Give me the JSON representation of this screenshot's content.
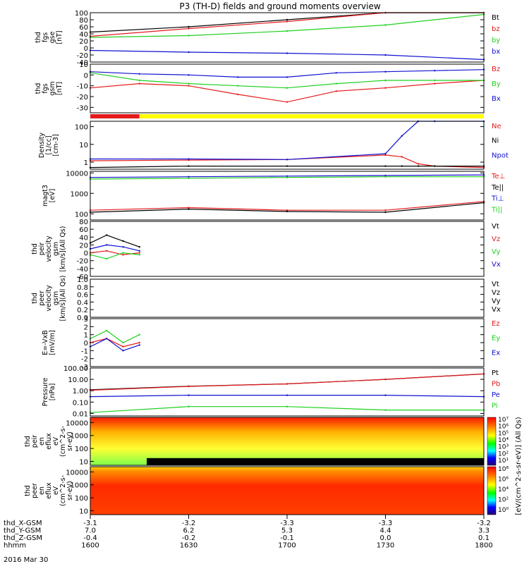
{
  "title": "P3 (TH-D) fields and ground moments overview",
  "date_label": "2016 Mar 30",
  "colors": {
    "black": "#000000",
    "red": "#e41a1c",
    "green": "#1fd01f",
    "blue": "#1010d0",
    "yellow": "#ffff00"
  },
  "chart_data": [
    {
      "id": "fgs-gse",
      "type": "line",
      "ylabel": [
        "thd",
        "fgs",
        "gse",
        "[nT]"
      ],
      "ylim": [
        -40,
        100
      ],
      "yticks": [
        100,
        80,
        60,
        40,
        20,
        0,
        -20,
        -40
      ],
      "x": [
        1600,
        1630,
        1700,
        1730,
        1800
      ],
      "series": [
        {
          "name": "Bt",
          "color": "black",
          "values": [
            45,
            60,
            80,
            110,
            130
          ]
        },
        {
          "name": "bz",
          "color": "red",
          "values": [
            33,
            55,
            75,
            110,
            130
          ]
        },
        {
          "name": "by",
          "color": "green",
          "values": [
            30,
            35,
            48,
            65,
            95
          ]
        },
        {
          "name": "bx",
          "color": "blue",
          "values": [
            -7,
            -12,
            -15,
            -20,
            -33
          ]
        }
      ]
    },
    {
      "id": "fgs-gsm",
      "type": "line",
      "ylabel": [
        "thd",
        "fgs",
        "gsm",
        "[nT]"
      ],
      "ylim": [
        -35,
        10
      ],
      "yticks": [
        10,
        0,
        -10,
        -20,
        -30
      ],
      "x": [
        1600,
        1615,
        1630,
        1645,
        1700,
        1715,
        1730,
        1745,
        1800
      ],
      "series": [
        {
          "name": "Bz",
          "color": "red",
          "values": [
            -12,
            -8,
            -10,
            -18,
            -25,
            -15,
            -12,
            -8,
            -5
          ]
        },
        {
          "name": "By",
          "color": "green",
          "values": [
            2,
            -5,
            -8,
            -10,
            -12,
            -8,
            -5,
            -5,
            -5
          ]
        },
        {
          "name": "Bx",
          "color": "blue",
          "values": [
            3,
            1,
            0,
            -2,
            -2,
            2,
            3,
            4,
            5
          ]
        }
      ]
    },
    {
      "id": "mode-bar",
      "type": "bar",
      "segments": [
        {
          "color": "red",
          "from": 1600,
          "to": 1615
        },
        {
          "color": "yellow",
          "from": 1615,
          "to": 1800
        }
      ]
    },
    {
      "id": "density",
      "type": "line",
      "ylabel": [
        "Density",
        "[1/cc]",
        "[cm-3]"
      ],
      "scale": "log",
      "ylim": [
        0.4,
        200
      ],
      "yticks": [
        100,
        10,
        1
      ],
      "ytick_labels": [
        "100",
        "10",
        "1"
      ],
      "x": [
        1600,
        1630,
        1700,
        1730,
        1735,
        1740,
        1745,
        1800
      ],
      "series": [
        {
          "name": "Ne",
          "color": "red",
          "values": [
            1.2,
            1.3,
            1.4,
            2.5,
            2,
            0.8,
            0.6,
            0.5
          ]
        },
        {
          "name": "Ni",
          "color": "black",
          "values": [
            0.5,
            0.6,
            0.6,
            0.6,
            0.6,
            0.6,
            0.6,
            0.6
          ]
        },
        {
          "name": "Npot",
          "color": "blue",
          "values": [
            1.5,
            1.5,
            1.4,
            3,
            30,
            200,
            200,
            200
          ]
        }
      ]
    },
    {
      "id": "temperature",
      "type": "line",
      "ylabel": [
        "magt3",
        "[eV]"
      ],
      "scale": "log",
      "ylim": [
        50,
        12000
      ],
      "yticks": [
        10000,
        1000,
        100
      ],
      "ytick_labels": [
        "10000",
        "1000",
        "100"
      ],
      "legend": [
        "Te⊥",
        "Te||",
        "Ti⊥",
        "Ti||"
      ],
      "x": [
        1600,
        1630,
        1700,
        1730,
        1800
      ],
      "series": [
        {
          "name": "Te⊥",
          "color": "red",
          "values": [
            150,
            200,
            150,
            150,
            400
          ]
        },
        {
          "name": "Te||",
          "color": "black",
          "values": [
            120,
            170,
            130,
            120,
            350
          ]
        },
        {
          "name": "Ti⊥",
          "color": "blue",
          "values": [
            6000,
            6500,
            7000,
            7500,
            8000
          ]
        },
        {
          "name": "Ti||",
          "color": "green",
          "values": [
            5000,
            5500,
            6000,
            6500,
            6500
          ]
        }
      ]
    },
    {
      "id": "peir-velocity",
      "type": "line",
      "ylabel": [
        "thd",
        "peir",
        "velocity",
        "gsm",
        "[km/s](All Qs)"
      ],
      "ylim": [
        -60,
        80
      ],
      "yticks": [
        80,
        60,
        40,
        20,
        0,
        -20,
        -40,
        -60
      ],
      "x": [
        1600,
        1605,
        1610,
        1615
      ],
      "series": [
        {
          "name": "Vt",
          "color": "black",
          "values": [
            25,
            45,
            30,
            15
          ]
        },
        {
          "name": "Vz",
          "color": "red",
          "values": [
            0,
            5,
            -5,
            0
          ]
        },
        {
          "name": "Vy",
          "color": "green",
          "values": [
            -5,
            -15,
            0,
            -5
          ]
        },
        {
          "name": "Vx",
          "color": "blue",
          "values": [
            10,
            20,
            15,
            5
          ]
        }
      ]
    },
    {
      "id": "peer-velocity",
      "type": "line",
      "ylabel": [
        "thd",
        "peer",
        "velocity",
        "gsm",
        "[km/s](All Qs)"
      ],
      "ylim": [
        0,
        1
      ],
      "yticks": [
        1.0,
        0.8,
        0.6,
        0.4,
        0.2,
        0.0
      ],
      "ytick_labels": [
        "1.0",
        "0.8",
        "0.6",
        "0.4",
        "0.2",
        "0.0"
      ],
      "legend": [
        "Vt",
        "Vz",
        "Vy",
        "Vx"
      ],
      "series": []
    },
    {
      "id": "efield",
      "type": "line",
      "ylabel": [
        "E=-VxB",
        "[mV/m]"
      ],
      "ylim": [
        -3,
        3
      ],
      "yticks": [
        3,
        2,
        1,
        0,
        -1,
        -2,
        -3
      ],
      "x": [
        1600,
        1605,
        1610,
        1615
      ],
      "series": [
        {
          "name": "Ez",
          "color": "red",
          "values": [
            0,
            0.5,
            -0.5,
            0
          ]
        },
        {
          "name": "Ey",
          "color": "green",
          "values": [
            0.5,
            1.5,
            0,
            1
          ]
        },
        {
          "name": "Ex",
          "color": "blue",
          "values": [
            -0.5,
            0.5,
            -1,
            -0.3
          ]
        }
      ]
    },
    {
      "id": "pressure",
      "type": "line",
      "ylabel": [
        "Pressure",
        "[nPa]"
      ],
      "scale": "log",
      "ylim": [
        0.006,
        100
      ],
      "yticks": [
        100,
        10,
        1,
        0.1,
        0.01
      ],
      "ytick_labels": [
        "100.00",
        "10.00",
        "1.00",
        "0.10",
        "0.01"
      ],
      "x": [
        1600,
        1630,
        1700,
        1730,
        1800
      ],
      "series": [
        {
          "name": "Pt",
          "color": "black",
          "values": [
            1.2,
            2.5,
            4,
            10,
            30
          ]
        },
        {
          "name": "Pb",
          "color": "red",
          "values": [
            1.1,
            2.4,
            4,
            10,
            30
          ]
        },
        {
          "name": "Pe",
          "color": "blue",
          "values": [
            0.3,
            0.4,
            0.4,
            0.4,
            0.3
          ]
        },
        {
          "name": "Pi",
          "color": "green",
          "values": [
            0.012,
            0.04,
            0.04,
            0.02,
            0.02
          ]
        }
      ]
    },
    {
      "id": "peir-eflux",
      "type": "heatmap",
      "ylabel": [
        "thd",
        "peir",
        "en",
        "eflux",
        "eV",
        "(cm^2-s-",
        "sr-eV)"
      ],
      "yticks": [
        10000,
        1000,
        100,
        10
      ],
      "ytick_labels": [
        "10000",
        "1000",
        "100",
        "10"
      ],
      "colorbar": {
        "ticks": [
          "10⁷",
          "10⁶",
          "10⁵",
          "10⁴",
          "10³",
          "10²",
          "10¹"
        ],
        "label": "[eV/(cm^2-s-sr-eV)] (All Qs)"
      }
    },
    {
      "id": "peer-eflux",
      "type": "heatmap",
      "ylabel": [
        "thd",
        "peer",
        "en",
        "eflux",
        "eV",
        "(cm^2-s-",
        "sr-eV)"
      ],
      "yticks": [
        10000,
        1000,
        100,
        10
      ],
      "ytick_labels": [
        "10000",
        "1000",
        "100",
        "10"
      ],
      "colorbar": {
        "ticks": [
          "10⁸",
          "10⁶",
          "10⁴",
          "10²",
          "10⁰"
        ],
        "label": "[eV/(cm^2-s-sr-eV)] (All Qs)"
      }
    }
  ],
  "x_axis": {
    "rows": [
      {
        "label": "thd_X-GSM",
        "values": [
          "-3.1",
          "-3.2",
          "-3.3",
          "-3.3",
          "-3.2"
        ]
      },
      {
        "label": "thd_Y-GSM",
        "values": [
          "7.0",
          "6.2",
          "5.3",
          "4.4",
          "3.3"
        ]
      },
      {
        "label": "thd_Z-GSM",
        "values": [
          "-0.4",
          "-0.2",
          "-0.1",
          "0.0",
          "0.1"
        ]
      },
      {
        "label": "hhmm",
        "values": [
          "1600",
          "1630",
          "1700",
          "1730",
          "1800"
        ]
      }
    ]
  }
}
